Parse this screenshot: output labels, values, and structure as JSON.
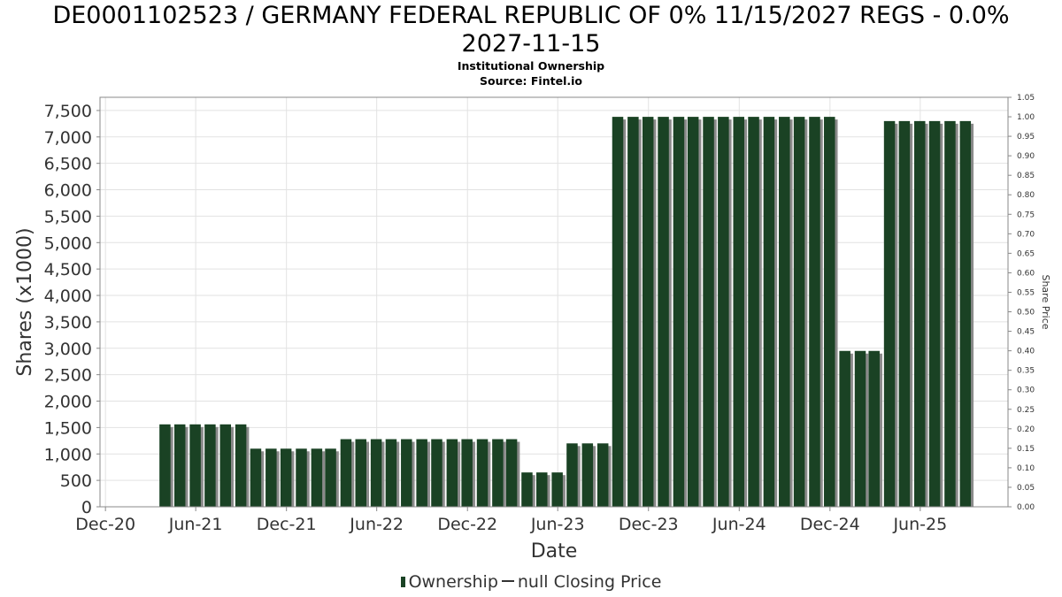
{
  "chart_data": {
    "type": "bar",
    "title_line1": "DE0001102523 / GERMANY FEDERAL REPUBLIC OF 0% 11/15/2027 REGS - 0.0%",
    "title_line2": "2027-11-15",
    "subtitle": "Institutional Ownership",
    "source": "Source: Fintel.io",
    "xlabel": "Date",
    "ylabel": "Shares (x1000)",
    "y2label": "Share Price",
    "ylim": [
      0,
      7750
    ],
    "y2lim": [
      0,
      1.05
    ],
    "yticks": [
      0,
      500,
      1000,
      1500,
      2000,
      2500,
      3000,
      3500,
      4000,
      4500,
      5000,
      5500,
      6000,
      6500,
      7000,
      7500
    ],
    "ytick_labels": [
      "0",
      "500",
      "1,000",
      "1,500",
      "2,000",
      "2,500",
      "3,000",
      "3,500",
      "4,000",
      "4,500",
      "5,000",
      "5,500",
      "6,000",
      "6,500",
      "7,000",
      "7,500"
    ],
    "y2ticks": [
      "0.00",
      "0.05",
      "0.10",
      "0.15",
      "0.20",
      "0.25",
      "0.30",
      "0.35",
      "0.40",
      "0.45",
      "0.50",
      "0.55",
      "0.60",
      "0.65",
      "0.70",
      "0.75",
      "0.80",
      "0.85",
      "0.90",
      "0.95",
      "1.00",
      "1.05"
    ],
    "xticks": [
      "2020-12-01",
      "2021-06-01",
      "2021-12-01",
      "2022-06-01",
      "2022-12-01",
      "2023-06-01",
      "2023-12-01",
      "2024-06-01",
      "2024-12-01",
      "2025-06-01"
    ],
    "xtick_labels": [
      "Dec-20",
      "Jun-21",
      "Dec-21",
      "Jun-22",
      "Dec-22",
      "Jun-23",
      "Dec-23",
      "Jun-24",
      "Dec-24",
      "Jun-25"
    ],
    "xlim": [
      "2020-11-20",
      "2025-11-25"
    ],
    "grid": true,
    "legend_position": "bottom",
    "legend": [
      {
        "label": "Ownership",
        "marker": "bar"
      },
      {
        "label": "null Closing Price",
        "marker": "line"
      }
    ],
    "series": [
      {
        "name": "Ownership",
        "color": "#1a4224",
        "x": [
          "2021-03-31",
          "2021-04-30",
          "2021-05-31",
          "2021-06-30",
          "2021-07-31",
          "2021-08-31",
          "2021-09-30",
          "2021-10-31",
          "2021-11-30",
          "2021-12-31",
          "2022-01-31",
          "2022-02-28",
          "2022-03-31",
          "2022-04-30",
          "2022-05-31",
          "2022-06-30",
          "2022-07-31",
          "2022-08-31",
          "2022-09-30",
          "2022-10-31",
          "2022-11-30",
          "2022-12-31",
          "2023-01-31",
          "2023-02-28",
          "2023-03-31",
          "2023-04-30",
          "2023-05-31",
          "2023-06-30",
          "2023-07-31",
          "2023-08-31",
          "2023-09-30",
          "2023-10-31",
          "2023-11-30",
          "2023-12-31",
          "2024-01-31",
          "2024-02-29",
          "2024-03-31",
          "2024-04-30",
          "2024-05-31",
          "2024-06-30",
          "2024-07-31",
          "2024-08-31",
          "2024-09-30",
          "2024-10-31",
          "2024-11-30",
          "2024-12-31",
          "2025-01-31",
          "2025-02-28",
          "2025-03-31",
          "2025-04-30",
          "2025-05-31",
          "2025-06-30",
          "2025-07-31",
          "2025-08-31"
        ],
        "values": [
          1560,
          1560,
          1560,
          1560,
          1560,
          1560,
          1100,
          1100,
          1100,
          1100,
          1100,
          1100,
          1280,
          1280,
          1280,
          1280,
          1280,
          1280,
          1280,
          1280,
          1280,
          1280,
          1280,
          1280,
          650,
          650,
          650,
          1200,
          1200,
          1200,
          7380,
          7380,
          7380,
          7380,
          7380,
          7380,
          7380,
          7380,
          7380,
          7380,
          7380,
          7380,
          7380,
          7380,
          7380,
          2950,
          2950,
          2950,
          7300,
          7300,
          7300,
          7300,
          7300,
          7300
        ]
      }
    ]
  }
}
